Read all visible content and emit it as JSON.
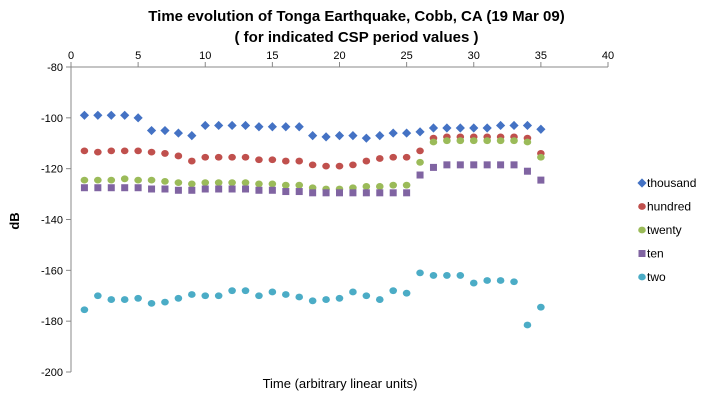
{
  "chart_data": {
    "type": "scatter",
    "title": "Time evolution of Tonga Earthquake, Cobb, CA (19 Mar 09)",
    "subtitle": "( for indicated CSP period values )",
    "xlabel": "Time  (arbitrary linear units)",
    "ylabel": "dB",
    "xlim": [
      0,
      40
    ],
    "ylim": [
      -200,
      -80
    ],
    "xticks": [
      "0",
      "5",
      "10",
      "15",
      "20",
      "25",
      "30",
      "35",
      "40"
    ],
    "yticks": [
      "-80",
      "-100",
      "-120",
      "-140",
      "-160",
      "-180",
      "-200"
    ],
    "x_tick_values": [
      0,
      5,
      10,
      15,
      20,
      25,
      30,
      35,
      40
    ],
    "y_tick_values": [
      -80,
      -100,
      -120,
      -140,
      -160,
      -180,
      -200
    ],
    "x_axis_position": "top",
    "grid": false,
    "legend_position": "right",
    "series": [
      {
        "name": "thousand",
        "marker": "diamond",
        "color": "#4472C4",
        "x": [
          1,
          2,
          3,
          4,
          5,
          6,
          7,
          8,
          9,
          10,
          11,
          12,
          13,
          14,
          15,
          16,
          17,
          18,
          19,
          20,
          21,
          22,
          23,
          24,
          25,
          26,
          27,
          28,
          29,
          30,
          31,
          32,
          33,
          34,
          35
        ],
        "y": [
          -99,
          -99,
          -99,
          -99,
          -100,
          -105,
          -105,
          -106,
          -107,
          -103,
          -103,
          -103,
          -103,
          -103.5,
          -103.5,
          -103.5,
          -103.5,
          -107,
          -107.5,
          -107,
          -107,
          -108,
          -107,
          -106,
          -106,
          -105.5,
          -104,
          -104,
          -104,
          -104,
          -104,
          -103,
          -103,
          -103,
          -104.5
        ]
      },
      {
        "name": "hundred",
        "marker": "circle",
        "color": "#C0504D",
        "x": [
          1,
          2,
          3,
          4,
          5,
          6,
          7,
          8,
          9,
          10,
          11,
          12,
          13,
          14,
          15,
          16,
          17,
          18,
          19,
          20,
          21,
          22,
          23,
          24,
          25,
          26,
          27,
          28,
          29,
          30,
          31,
          32,
          33,
          34,
          35
        ],
        "y": [
          -113,
          -113.5,
          -113,
          -113,
          -113,
          -113.5,
          -114,
          -115,
          -117,
          -115.5,
          -115.5,
          -115.5,
          -115.5,
          -116.5,
          -116.5,
          -117,
          -117,
          -118.5,
          -119,
          -119,
          -118.5,
          -117,
          -116,
          -115.5,
          -115.5,
          -113,
          -108,
          -107.5,
          -107.5,
          -107.5,
          -107.5,
          -107.5,
          -107.5,
          -108,
          -114
        ]
      },
      {
        "name": "twenty",
        "marker": "circle",
        "color": "#9BBB59",
        "x": [
          1,
          2,
          3,
          4,
          5,
          6,
          7,
          8,
          9,
          10,
          11,
          12,
          13,
          14,
          15,
          16,
          17,
          18,
          19,
          20,
          21,
          22,
          23,
          24,
          25,
          26,
          27,
          28,
          29,
          30,
          31,
          32,
          33,
          34,
          35
        ],
        "y": [
          -124.5,
          -124.5,
          -124.5,
          -124,
          -124.5,
          -124.5,
          -125,
          -125.5,
          -126,
          -125.5,
          -125.5,
          -125.5,
          -125.5,
          -126,
          -126,
          -126.5,
          -126.5,
          -127.5,
          -128,
          -128,
          -127.5,
          -127,
          -127,
          -126.5,
          -126.5,
          -117.5,
          -109.5,
          -109,
          -109,
          -109,
          -109,
          -109,
          -109,
          -109.5,
          -115.5
        ]
      },
      {
        "name": "ten",
        "marker": "square",
        "color": "#8064A2",
        "x": [
          1,
          2,
          3,
          4,
          5,
          6,
          7,
          8,
          9,
          10,
          11,
          12,
          13,
          14,
          15,
          16,
          17,
          18,
          19,
          20,
          21,
          22,
          23,
          24,
          25,
          26,
          27,
          28,
          29,
          30,
          31,
          32,
          33,
          34,
          35
        ],
        "y": [
          -127.5,
          -127.5,
          -127.5,
          -127.5,
          -127.5,
          -128,
          -128,
          -128.5,
          -128.5,
          -128,
          -128,
          -128,
          -128,
          -128.5,
          -128.5,
          -129,
          -129,
          -129.5,
          -129.5,
          -129.5,
          -129.5,
          -129.5,
          -129.5,
          -129.5,
          -129.5,
          -122.5,
          -119.5,
          -118.5,
          -118.5,
          -118.5,
          -118.5,
          -118.5,
          -118.5,
          -121,
          -124.5
        ]
      },
      {
        "name": "two",
        "marker": "circle",
        "color": "#4BACC6",
        "x": [
          1,
          2,
          3,
          4,
          5,
          6,
          7,
          8,
          9,
          10,
          11,
          12,
          13,
          14,
          15,
          16,
          17,
          18,
          19,
          20,
          21,
          22,
          23,
          24,
          25,
          26,
          27,
          28,
          29,
          30,
          31,
          32,
          33,
          34,
          35
        ],
        "y": [
          -175.5,
          -170,
          -171.5,
          -171.5,
          -171,
          -173,
          -172.5,
          -171,
          -169.5,
          -170,
          -170,
          -168,
          -168,
          -170,
          -168.5,
          -169.5,
          -170.5,
          -172,
          -171.5,
          -171,
          -168.5,
          -170,
          -171.5,
          -168,
          -169,
          -161,
          -162,
          -162,
          -162,
          -165,
          -164,
          -164,
          -164.5,
          -181.5,
          -174.5
        ]
      }
    ]
  }
}
